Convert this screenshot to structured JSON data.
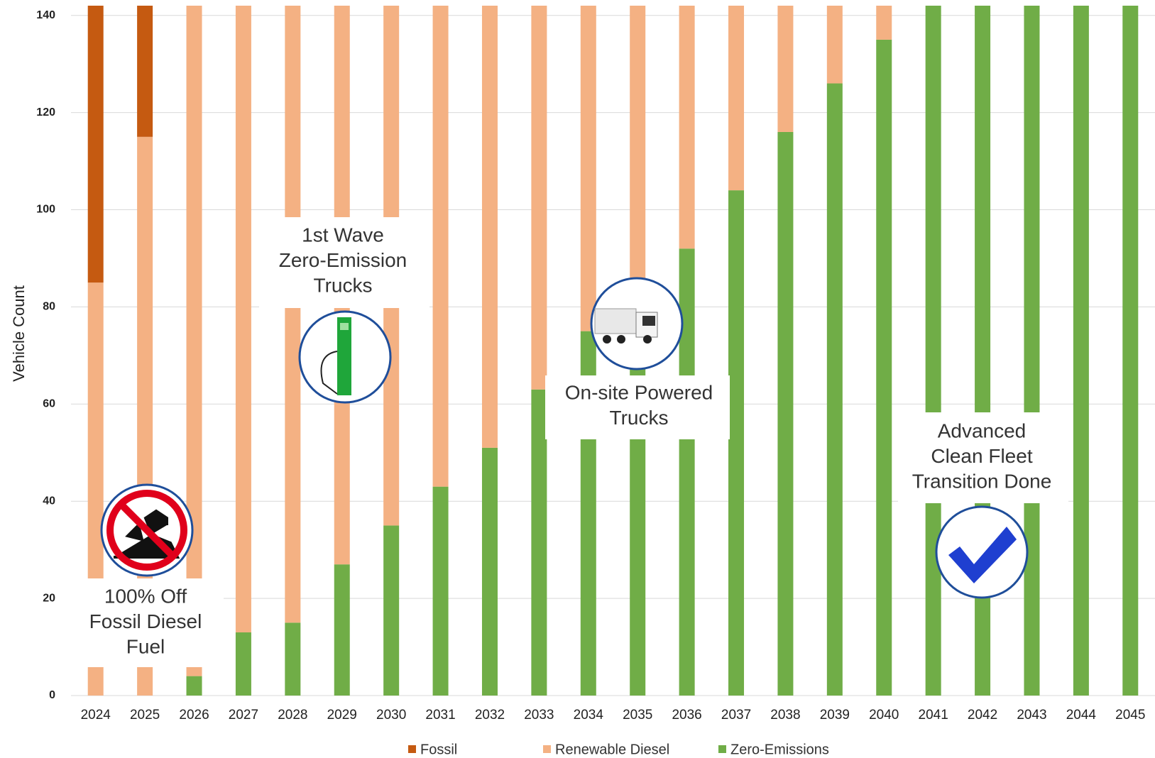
{
  "chart_data": {
    "type": "stacked-bar",
    "y_label": "Vehicle Count",
    "categories": [
      "2024",
      "2025",
      "2026",
      "2027",
      "2028",
      "2029",
      "2030",
      "2031",
      "2032",
      "2033",
      "2034",
      "2035",
      "2036",
      "2037",
      "2038",
      "2039",
      "2040",
      "2041",
      "2042",
      "2043",
      "2044",
      "2045"
    ],
    "series": [
      {
        "name": "Fossil",
        "color": "#c55a11",
        "values": [
          57,
          27,
          0,
          0,
          0,
          0,
          0,
          0,
          0,
          0,
          0,
          0,
          0,
          0,
          0,
          0,
          0,
          0,
          0,
          0,
          0,
          0
        ]
      },
      {
        "name": "Renewable Diesel",
        "color": "#f4b183",
        "values": [
          85,
          115,
          138,
          129,
          127,
          115,
          107,
          99,
          91,
          79,
          67,
          57,
          50,
          38,
          26,
          16,
          7,
          0,
          0,
          0,
          0,
          0
        ]
      },
      {
        "name": "Zero-Emissions",
        "color": "#70ad47",
        "values": [
          0,
          0,
          4,
          13,
          15,
          27,
          35,
          43,
          51,
          63,
          75,
          85,
          92,
          104,
          116,
          126,
          135,
          142,
          142,
          142,
          142,
          142
        ]
      }
    ],
    "ylim": [
      0,
      142
    ],
    "yticks": [
      0,
      20,
      40,
      60,
      80,
      100,
      120,
      140
    ],
    "grid": true,
    "legend": "bottom",
    "annotations": [
      {
        "lines": [
          "100% Off",
          "Fossil Diesel",
          "Fuel"
        ]
      },
      {
        "lines": [
          "1st  Wave",
          "Zero-Emission",
          "Trucks"
        ]
      },
      {
        "lines": [
          "On-site Powered",
          "Trucks"
        ]
      },
      {
        "lines": [
          "Advanced",
          "Clean Fleet",
          "Transition Done"
        ]
      }
    ]
  }
}
